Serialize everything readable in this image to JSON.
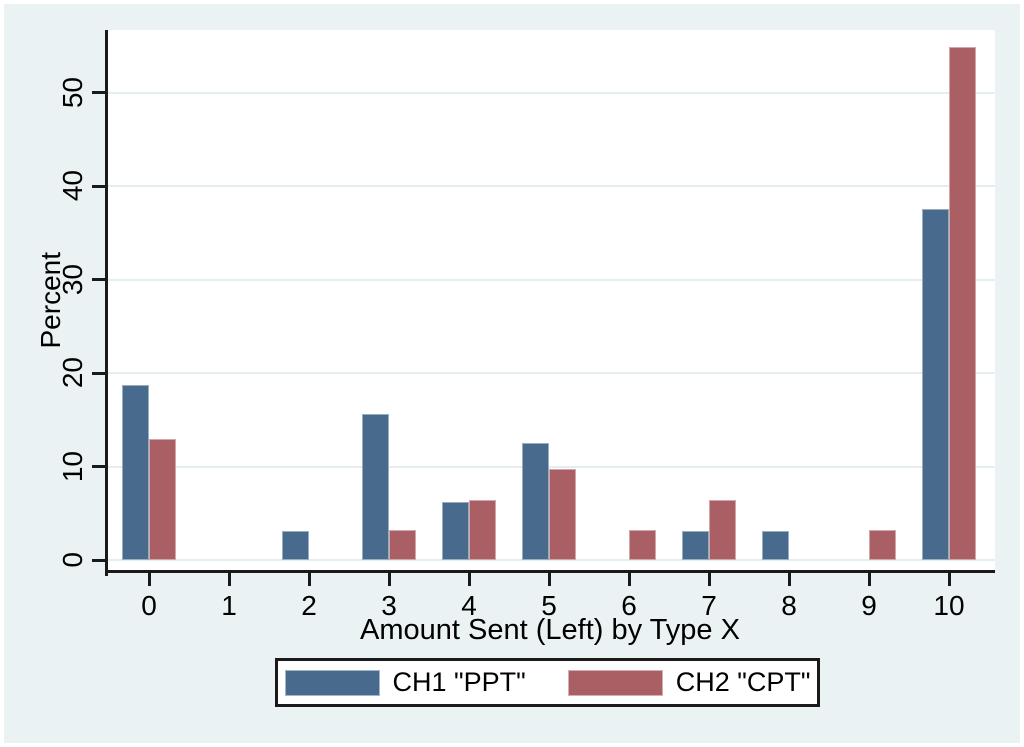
{
  "chart_data": {
    "type": "bar",
    "title": "",
    "xlabel": "Amount Sent (Left) by Type X",
    "ylabel": "Percent",
    "categories": [
      "0",
      "1",
      "2",
      "3",
      "4",
      "5",
      "6",
      "7",
      "8",
      "9",
      "10"
    ],
    "series": [
      {
        "name": "CH1 \"PPT\"",
        "color": "#486A8D",
        "values": [
          18.75,
          0,
          3.125,
          15.625,
          6.25,
          12.5,
          0,
          3.125,
          3.125,
          0,
          37.5
        ]
      },
      {
        "name": "CH2 \"CPT\"",
        "color": "#A95F64",
        "values": [
          12.9,
          0,
          0,
          3.23,
          6.45,
          9.68,
          3.23,
          6.45,
          0,
          3.23,
          54.84
        ]
      }
    ],
    "y_ticks": [
      0,
      10,
      20,
      30,
      40,
      50
    ],
    "ylim": [
      0,
      56.7
    ],
    "grid": true,
    "legend_position": "bottom",
    "bar_layout": "grouped"
  },
  "colors": {
    "canvas_background": "#EAF2F3",
    "plot_background": "#FFFFFF",
    "gridline": "#E4EEF0",
    "axis": "#1A1A1A",
    "series1": "#486A8D",
    "series2": "#A95F64"
  }
}
